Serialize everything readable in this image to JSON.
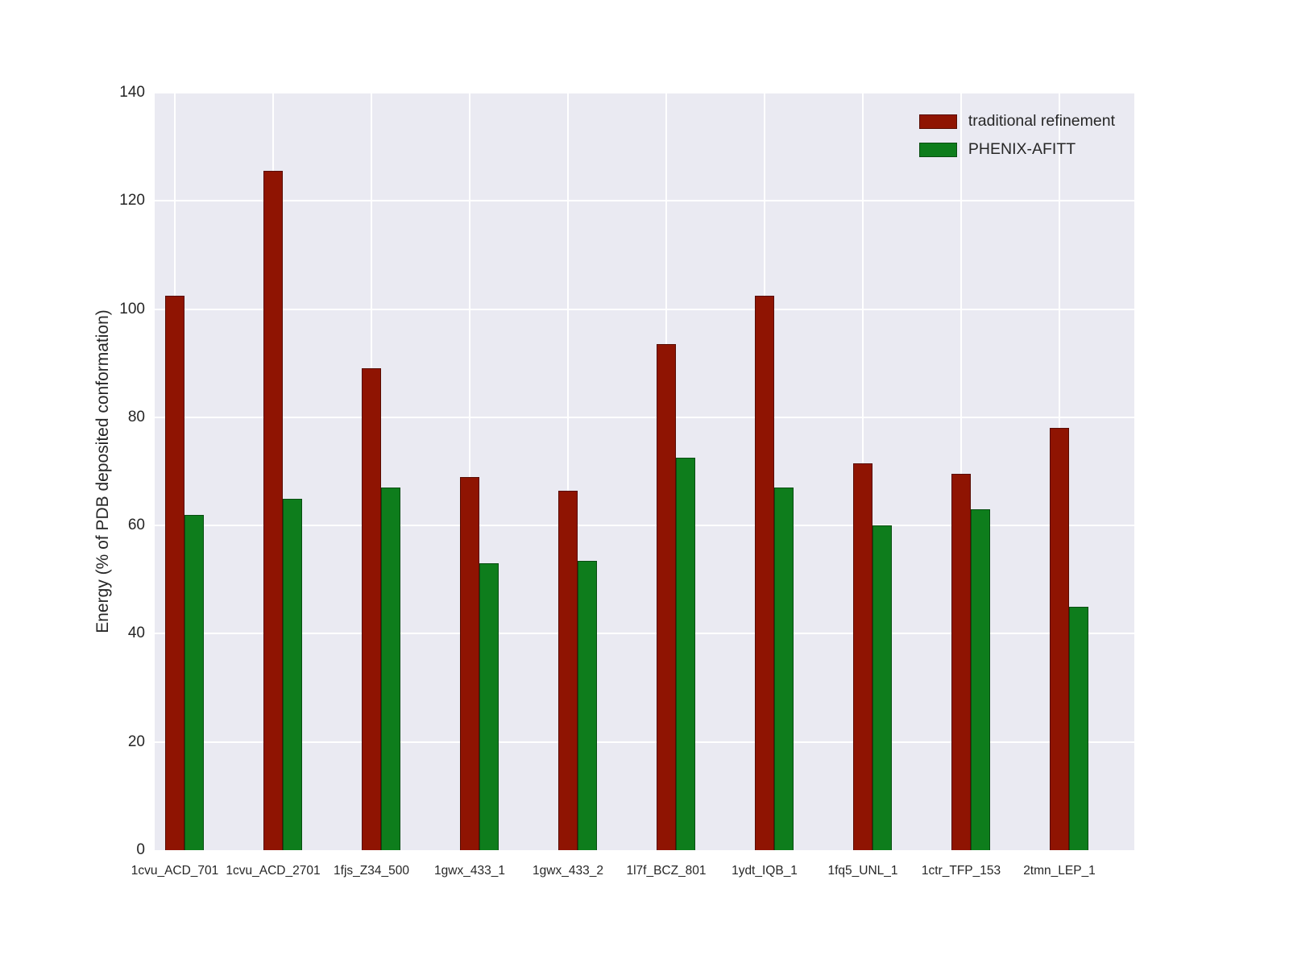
{
  "chart_data": {
    "type": "bar",
    "title": "",
    "xlabel": "",
    "ylabel": "Energy (% of PDB deposited conformation)",
    "ylim": [
      0,
      140
    ],
    "yticks": [
      0,
      20,
      40,
      60,
      80,
      100,
      120,
      140
    ],
    "grid": true,
    "plot_background": "#eaeaf2",
    "grid_color": "#ffffff",
    "legend_position": "upper right",
    "categories": [
      "1cvu_ACD_701",
      "1cvu_ACD_2701",
      "1fjs_Z34_500",
      "1gwx_433_1",
      "1gwx_433_2",
      "1l7f_BCZ_801",
      "1ydt_IQB_1",
      "1fq5_UNL_1",
      "1ctr_TFP_153",
      "2tmn_LEP_1"
    ],
    "series": [
      {
        "name": "traditional refinement",
        "color": "#8f1402",
        "values": [
          102.5,
          125.5,
          89,
          69,
          66.5,
          93.5,
          102.5,
          71.5,
          69.5,
          78
        ]
      },
      {
        "name": "PHENIX-AFITT",
        "color": "#0e7d1c",
        "values": [
          62,
          65,
          67,
          53,
          53.5,
          72.5,
          67,
          60,
          63,
          45
        ]
      }
    ]
  }
}
